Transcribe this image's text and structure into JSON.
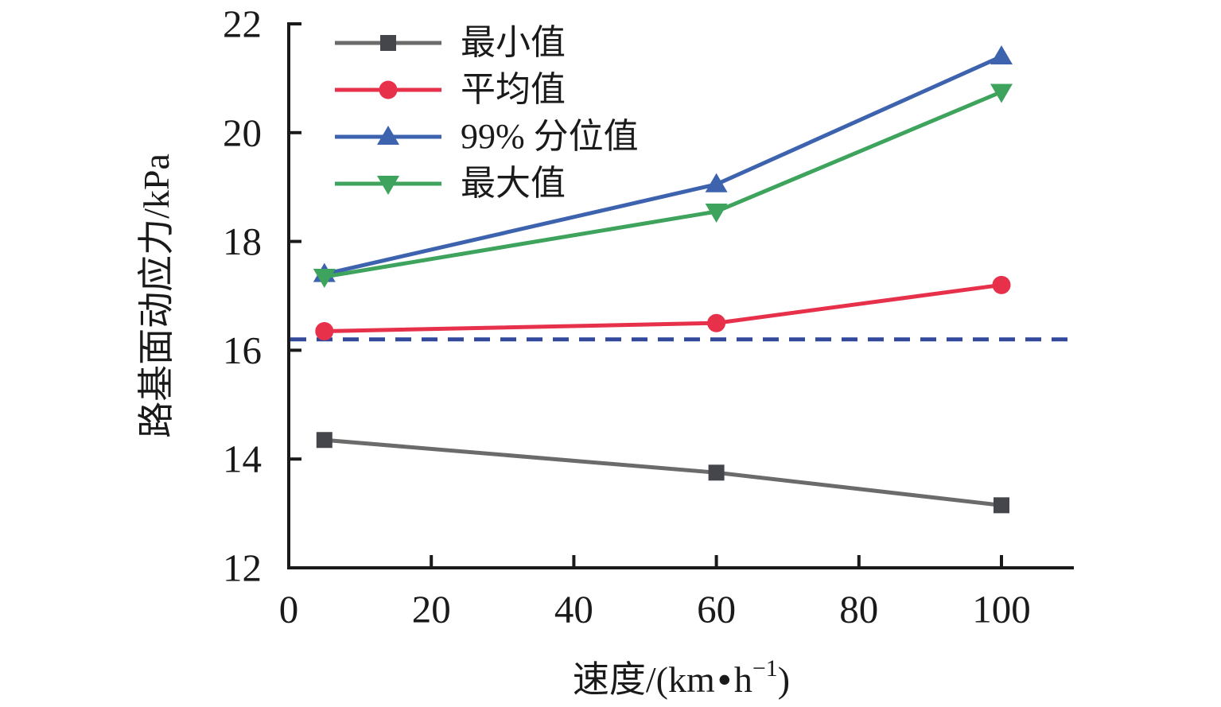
{
  "chart_data": {
    "type": "line",
    "title": "",
    "x": [
      5,
      60,
      100
    ],
    "x_ticks": [
      0,
      20,
      40,
      60,
      80,
      100
    ],
    "y_ticks": [
      12,
      14,
      16,
      18,
      20,
      22
    ],
    "xlim": [
      0,
      110
    ],
    "ylim": [
      12,
      22
    ],
    "grid": false,
    "legend_position": "upper-left-inside",
    "ylabel": "路基面动应力/kPa",
    "xlabel": {
      "pre": "速度/(km",
      "dot": "•",
      "base": "h",
      "sup": "−1",
      "post": ")"
    },
    "series": [
      {
        "name": "最小值",
        "marker": "square",
        "color": "#6B6B6B",
        "marker_color": "#45464C",
        "values": [
          14.35,
          13.75,
          13.15
        ]
      },
      {
        "name": "平均值",
        "marker": "circle",
        "color": "#E7314B",
        "marker_color": "#E7314B",
        "values": [
          16.35,
          16.5,
          17.2
        ]
      },
      {
        "name": "99% 分位值",
        "marker": "triangle-up",
        "color": "#3D63AE",
        "marker_color": "#3D63AE",
        "values": [
          17.4,
          19.05,
          21.4
        ]
      },
      {
        "name": "最大值",
        "marker": "triangle-down",
        "color": "#3EA35D",
        "marker_color": "#3EA35D",
        "values": [
          17.35,
          18.55,
          20.75
        ]
      }
    ],
    "reference_line": {
      "value": 16.2,
      "style": "dashed",
      "color": "#32489B"
    }
  },
  "colors": {
    "axis": "#1A1A1A",
    "background": "#FFFFFF"
  }
}
